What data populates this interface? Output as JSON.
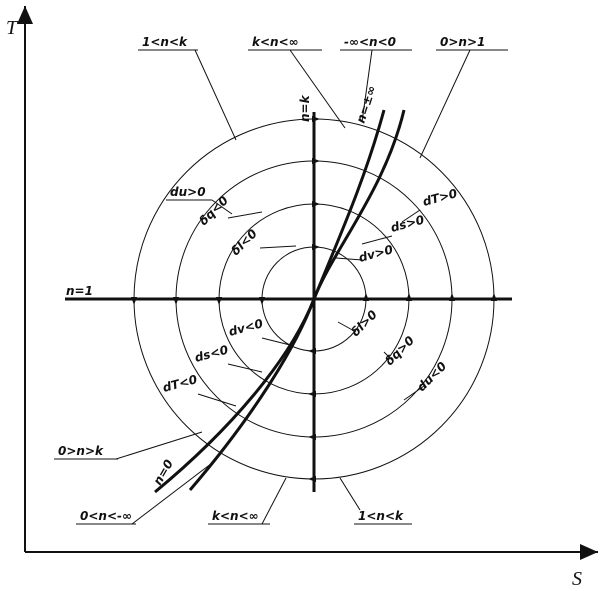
{
  "axes": {
    "y_label": "T",
    "x_label": "S"
  },
  "labels": [
    "1<n<k",
    "k<n<∞",
    "-∞<n<0",
    "0>n>1",
    "n=k",
    "n=±∞",
    "n=1",
    "du>0",
    "δq<0",
    "δl<0",
    "dT>0",
    "ds>0",
    "dv>0",
    "dv<0",
    "ds<0",
    "dT<0",
    "δl>0",
    "δq>0",
    "du<0",
    "0>n>k",
    "n=0",
    "0<n<-∞",
    "k<n<∞",
    "1<n<k"
  ]
}
